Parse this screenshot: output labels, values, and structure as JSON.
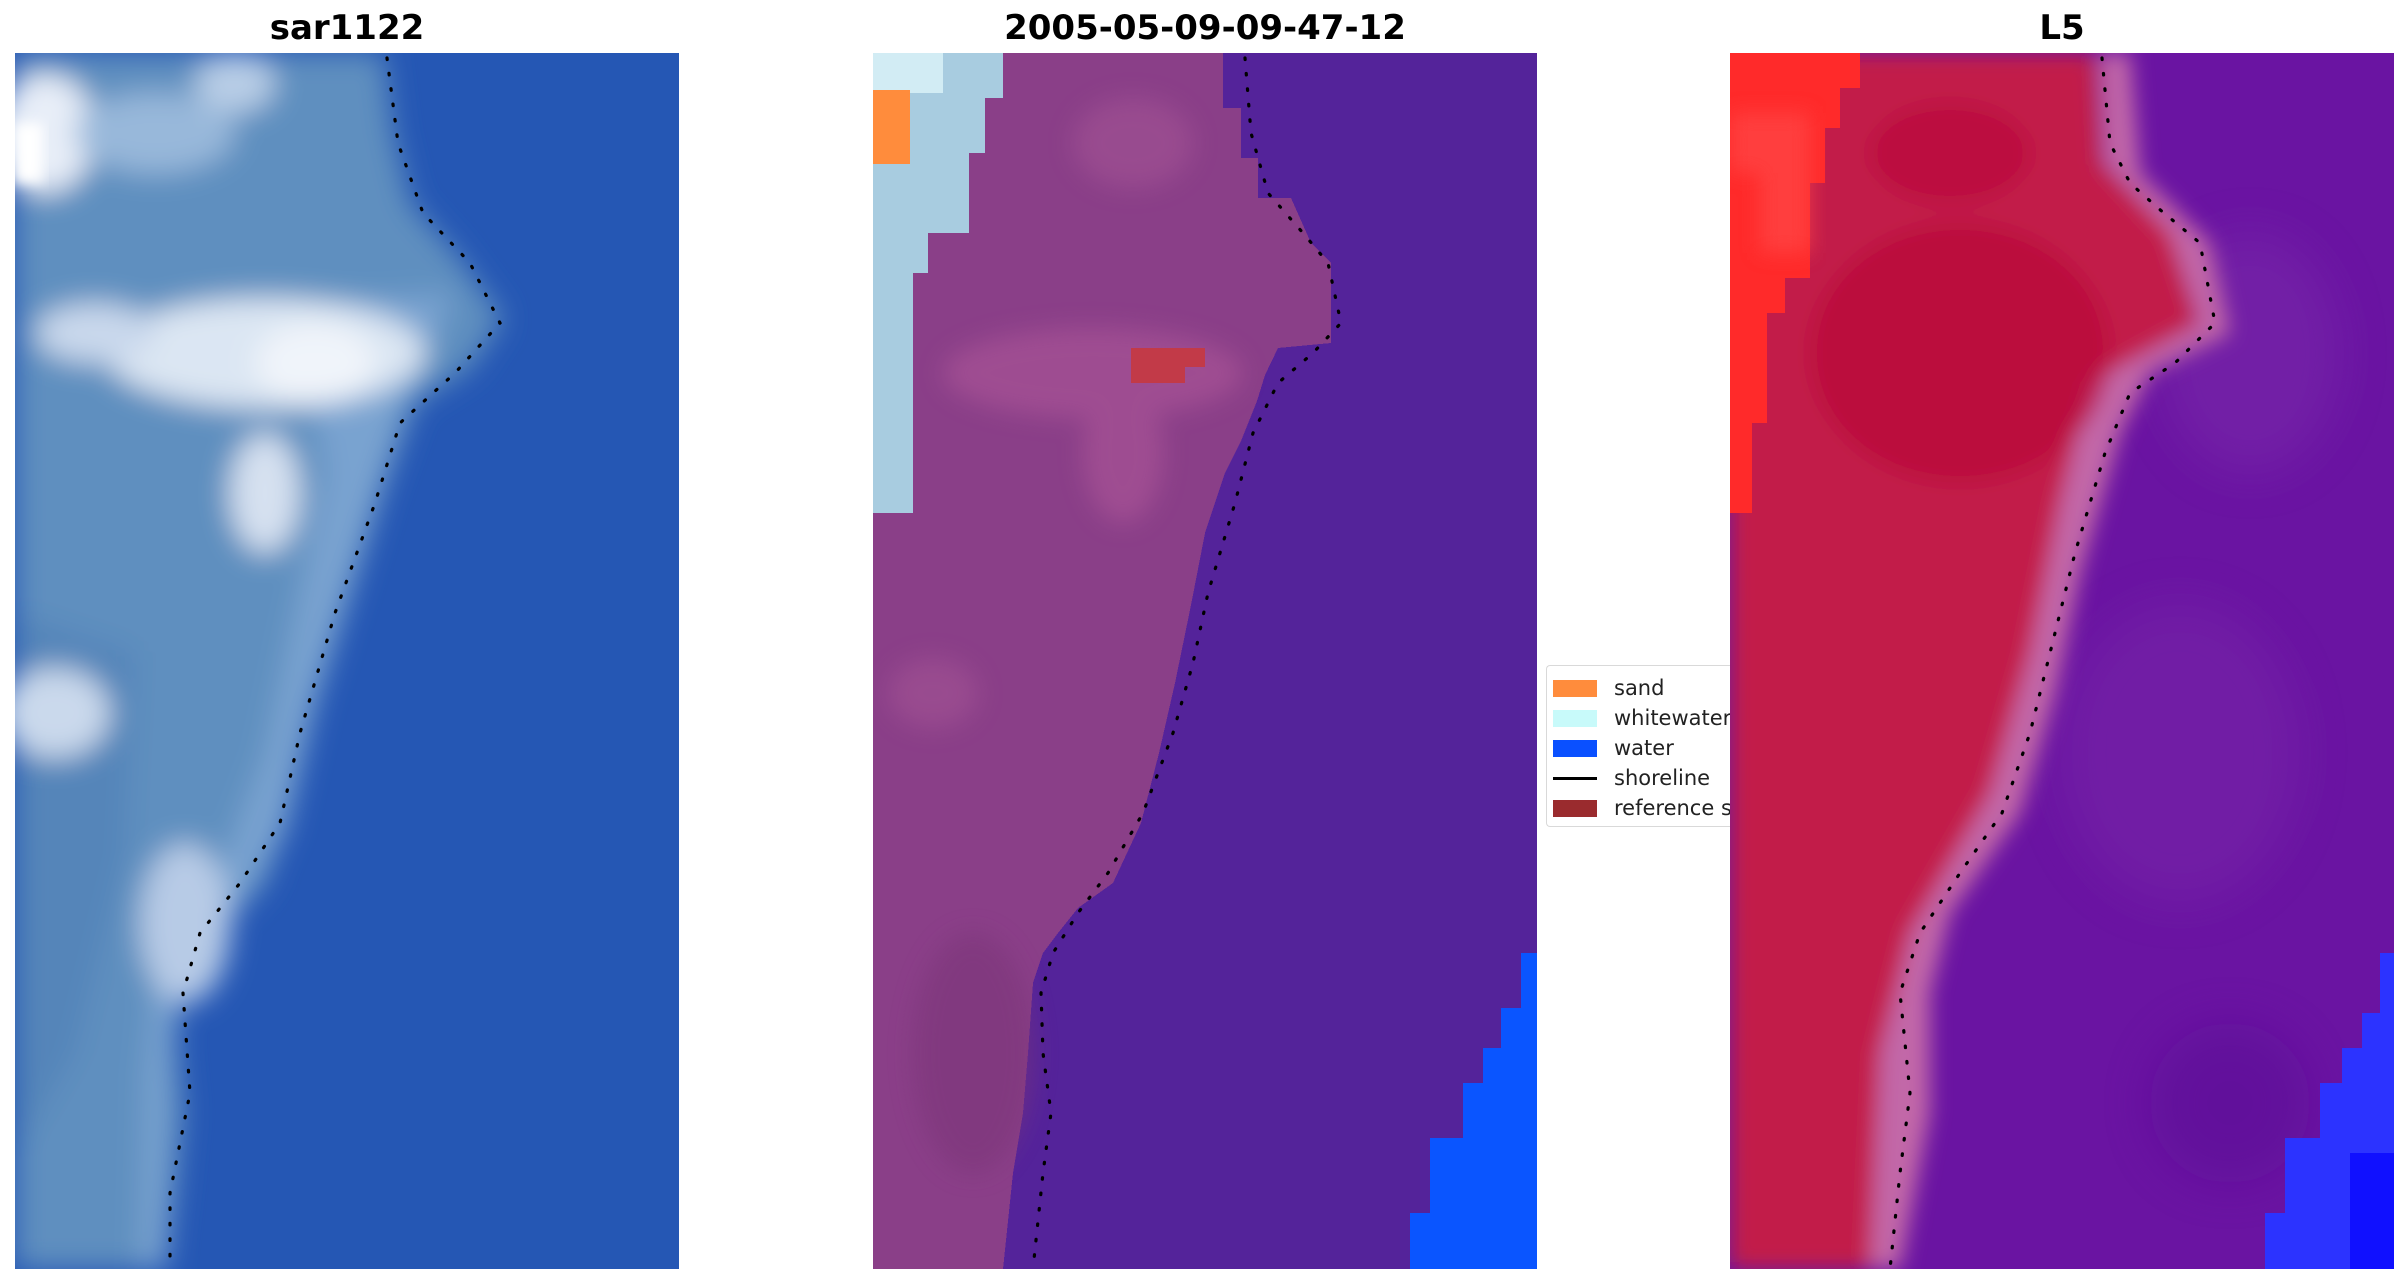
{
  "panels": [
    {
      "title": "sar1122"
    },
    {
      "title": "2005-05-09-09-47-12"
    },
    {
      "title": "L5"
    }
  ],
  "legend": {
    "items": [
      {
        "label": "sand",
        "color": "#ff8c3c",
        "kind": "patch"
      },
      {
        "label": "whitewater",
        "color": "#c8fafa",
        "kind": "patch"
      },
      {
        "label": "water",
        "color": "#0a50ff",
        "kind": "patch"
      },
      {
        "label": "shoreline",
        "color": "#000000",
        "kind": "line"
      },
      {
        "label": "reference shoreline",
        "color": "#9a2b2e",
        "kind": "patch"
      }
    ]
  },
  "colors": {
    "ocean_rgb": "#2557b4",
    "land_rgb": "#5e8cbc",
    "whitewater_rgb": "#d8e4f2",
    "classified_land": "#8a3f88",
    "classified_water": "#54239a",
    "classified_sand": "#ff8c3c",
    "classified_whitewater": "#a8cce0",
    "classified_water_blue": "#0a55ff",
    "reference_shoreline": "#c23a48",
    "index_land": "#c21c48",
    "index_sand": "#ff2a2a",
    "index_water": "#6a14a2",
    "index_blue": "#2233ff"
  }
}
